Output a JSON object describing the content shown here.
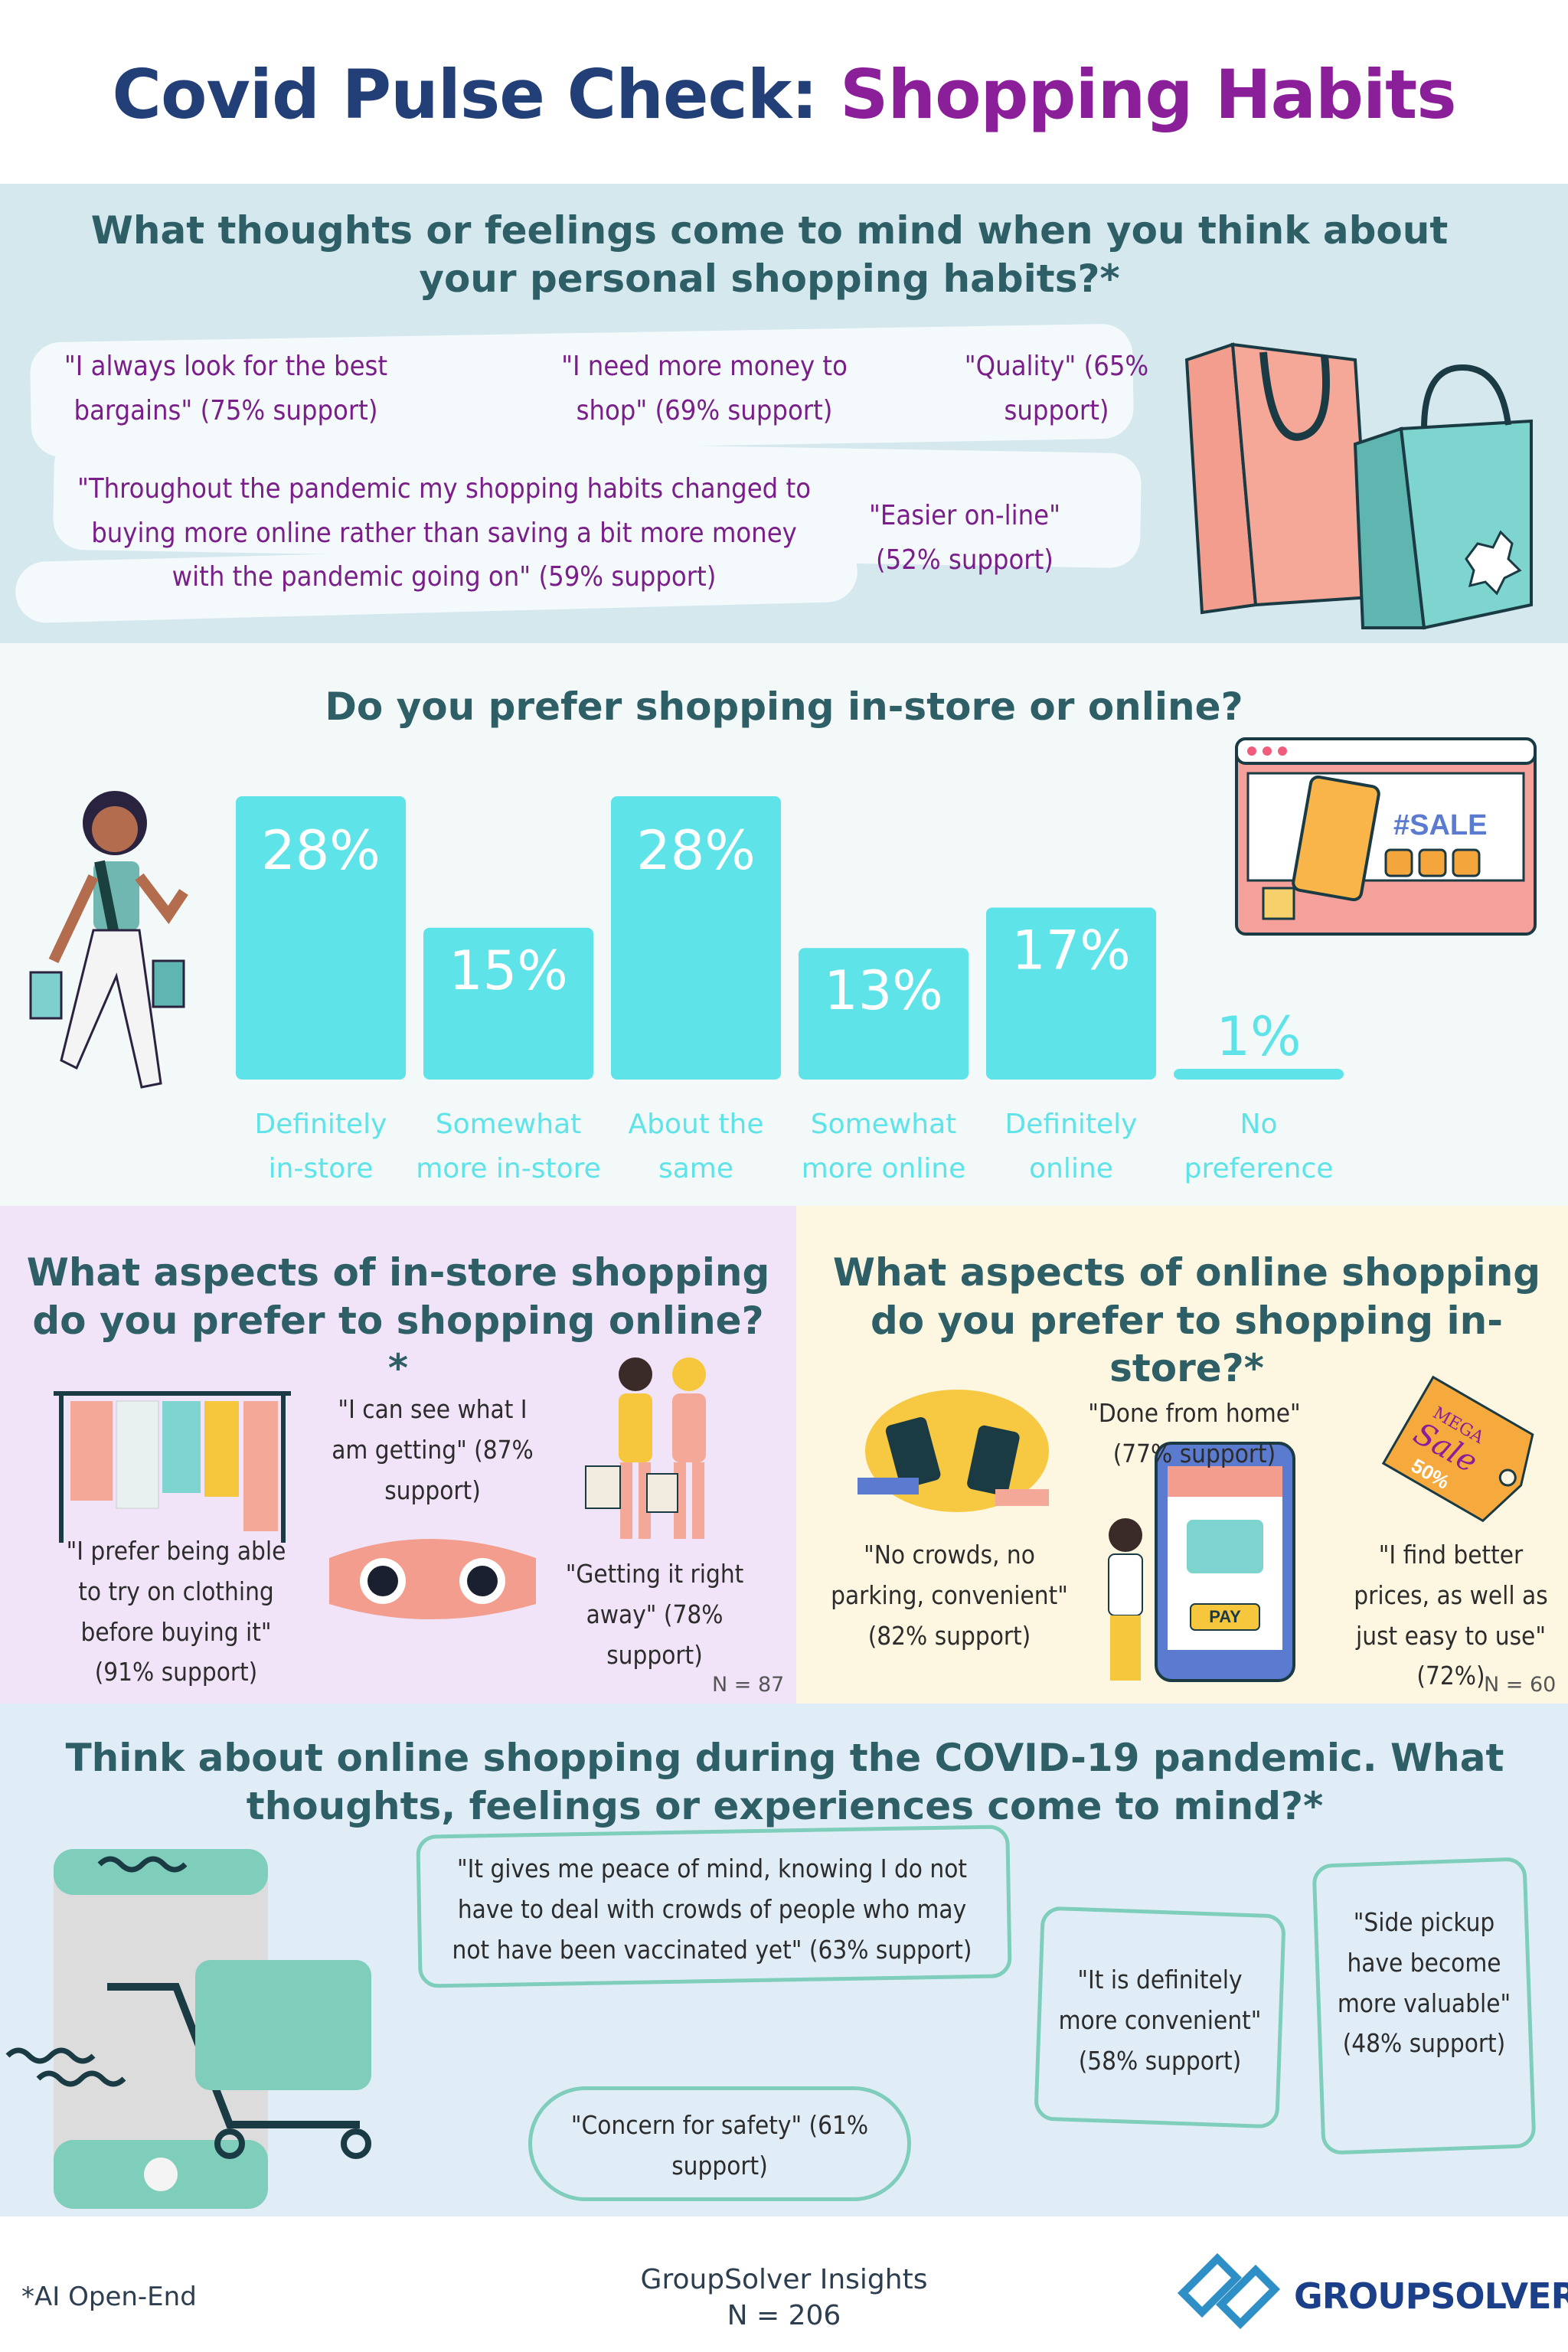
{
  "header": {
    "title_part1": "Covid Pulse Check: ",
    "title_part2": "Shopping Habits"
  },
  "section1": {
    "question": "What thoughts or feelings come to mind when you think about your personal shopping habits?*",
    "quotes": [
      "\"I always look for the best bargains\" (75% support)",
      "\"I need more money to shop\" (69% support)",
      "\"Quality\" (65% support)",
      "\"Throughout the pandemic my shopping habits changed to buying more online rather than saving a bit more money with the pandemic going on\" (59% support)",
      "\"Easier on-line\" (52% support)"
    ]
  },
  "section2": {
    "question": "Do you prefer shopping in-store or online?",
    "sale_sign": "#SALE"
  },
  "chart_data": {
    "type": "bar",
    "categories": [
      "Definitely in-store",
      "Somewhat more in-store",
      "About the same",
      "Somewhat more online",
      "Definitely online",
      "No preference"
    ],
    "values": [
      28,
      15,
      28,
      13,
      17,
      1
    ],
    "value_labels": [
      "28%",
      "15%",
      "28%",
      "13%",
      "17%",
      "1%"
    ],
    "bar_color": "#5ee3e8",
    "ylim": [
      0,
      28
    ]
  },
  "section3_left": {
    "question": "What aspects of in-store shopping do you prefer to shopping online?*",
    "quotes": [
      "\"I can see what I am getting\" (87% support)",
      "\"I prefer being able to try on clothing before buying it\" (91% support)",
      "\"Getting it right away\" (78% support)"
    ],
    "n_label": "N = 87"
  },
  "section3_right": {
    "question": "What aspects of online shopping do you prefer to shopping in-store?*",
    "quotes": [
      "\"Done from home\" (77% support)",
      "\"No crowds, no parking, convenient\" (82% support)",
      "\"I find better prices, as well as just easy to use\" (72%)"
    ],
    "n_label": "N = 60",
    "tag_text_1": "MEGA",
    "tag_text_2": "Sale",
    "tag_text_3": "50%",
    "pay_text": "PAY"
  },
  "section4": {
    "question": "Think about online shopping during the COVID-19 pandemic. What thoughts, feelings or experiences come to mind?*",
    "quotes": [
      "\"It gives me peace of mind, knowing I do not have to deal with crowds of people who may not have been vaccinated yet\" (63% support)",
      "\"It is definitely more convenient\" (58% support)",
      "\"Side pickup have become more valuable\" (48% support)",
      "\"Concern for safety\" (61% support)"
    ]
  },
  "footer": {
    "note": "*AI Open-End",
    "source": "GroupSolver Insights",
    "n_total": "N = 206",
    "logo_text": "GROUPSOLVER"
  },
  "colors": {
    "title_blue": "#233f78",
    "title_purple": "#8b1e99",
    "quote_purple": "#7a1e8a",
    "bar_cyan": "#5ee3e8",
    "bubble_green": "#7fcdbb"
  }
}
